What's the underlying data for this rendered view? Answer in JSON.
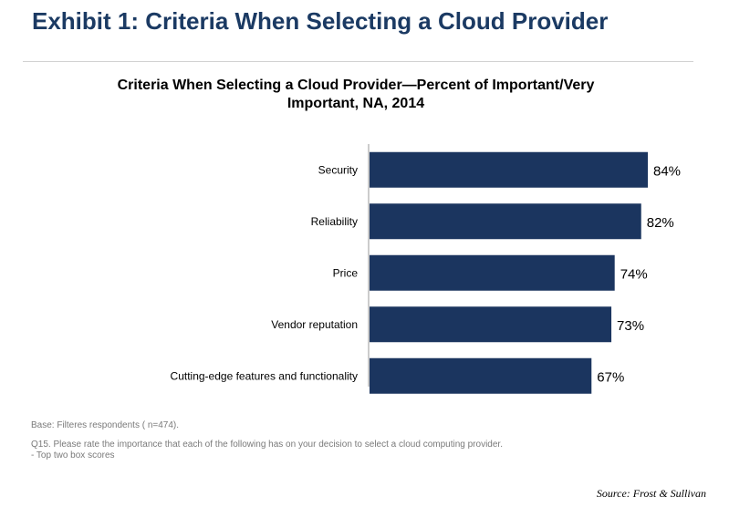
{
  "exhibit_title": "Exhibit 1: Criteria When Selecting a Cloud Provider",
  "colors": {
    "bar": "#1b355f",
    "title": "#1b3a63"
  },
  "chart_data": {
    "type": "bar",
    "orientation": "horizontal",
    "title_lines": [
      "Criteria When Selecting a Cloud Provider—Percent of Important/Very",
      "Important, NA, 2014"
    ],
    "categories": [
      "Security",
      "Reliability",
      "Price",
      "Vendor reputation",
      "Cutting-edge features and functionality"
    ],
    "values": [
      84,
      82,
      74,
      73,
      67
    ],
    "labels": [
      "84%",
      "82%",
      "74%",
      "73%",
      "67%"
    ],
    "xlim": [
      0,
      84
    ],
    "grid": false
  },
  "footnotes": {
    "base": "Base: Filteres respondents ( n=474).",
    "question": "Q15.  Please rate the importance that each of the following has on your decision to select a cloud computing provider.",
    "note": "- Top two box scores"
  },
  "source": "Source:  Frost & Sullivan"
}
